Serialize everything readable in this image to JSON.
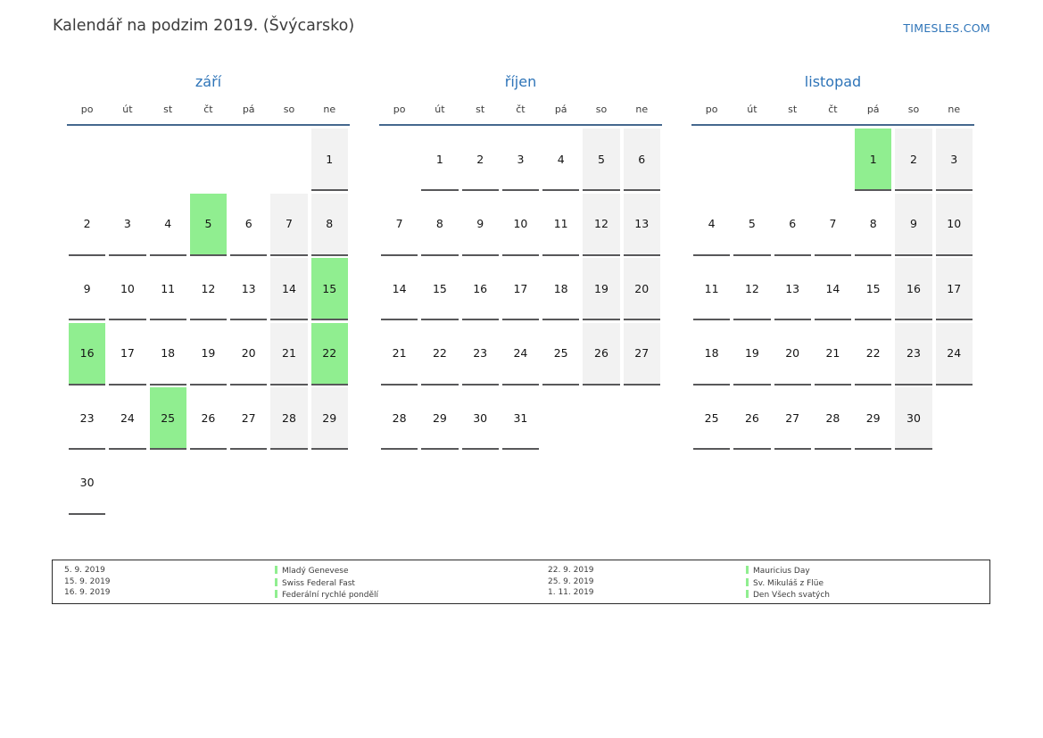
{
  "header": {
    "title": "Kalendář na podzim 2019. (Švýcarsko)",
    "site_link": "TIMESLES.COM"
  },
  "weekday_labels": [
    "po",
    "út",
    "st",
    "čt",
    "pá",
    "so",
    "ne"
  ],
  "colors": {
    "accent_blue": "#2e74b8",
    "header_line_blue": "#45688e",
    "holiday_green": "#90ee90",
    "weekend_gray": "#f2f2f2",
    "cell_underline": "#58585a",
    "text_dark": "#3c3c3c"
  },
  "months": [
    {
      "name": "září",
      "weeks": [
        [
          null,
          null,
          null,
          null,
          null,
          null,
          {
            "d": 1,
            "t": "we"
          }
        ],
        [
          {
            "d": 2,
            "t": "wd"
          },
          {
            "d": 3,
            "t": "wd"
          },
          {
            "d": 4,
            "t": "wd"
          },
          {
            "d": 5,
            "t": "hl"
          },
          {
            "d": 6,
            "t": "wd"
          },
          {
            "d": 7,
            "t": "we"
          },
          {
            "d": 8,
            "t": "we"
          }
        ],
        [
          {
            "d": 9,
            "t": "wd"
          },
          {
            "d": 10,
            "t": "wd"
          },
          {
            "d": 11,
            "t": "wd"
          },
          {
            "d": 12,
            "t": "wd"
          },
          {
            "d": 13,
            "t": "wd"
          },
          {
            "d": 14,
            "t": "we"
          },
          {
            "d": 15,
            "t": "hl"
          }
        ],
        [
          {
            "d": 16,
            "t": "hl"
          },
          {
            "d": 17,
            "t": "wd"
          },
          {
            "d": 18,
            "t": "wd"
          },
          {
            "d": 19,
            "t": "wd"
          },
          {
            "d": 20,
            "t": "wd"
          },
          {
            "d": 21,
            "t": "we"
          },
          {
            "d": 22,
            "t": "hl"
          }
        ],
        [
          {
            "d": 23,
            "t": "wd"
          },
          {
            "d": 24,
            "t": "wd"
          },
          {
            "d": 25,
            "t": "hl"
          },
          {
            "d": 26,
            "t": "wd"
          },
          {
            "d": 27,
            "t": "wd"
          },
          {
            "d": 28,
            "t": "we"
          },
          {
            "d": 29,
            "t": "we"
          }
        ],
        [
          {
            "d": 30,
            "t": "wd"
          },
          null,
          null,
          null,
          null,
          null,
          null
        ]
      ]
    },
    {
      "name": "říjen",
      "weeks": [
        [
          null,
          {
            "d": 1,
            "t": "wd"
          },
          {
            "d": 2,
            "t": "wd"
          },
          {
            "d": 3,
            "t": "wd"
          },
          {
            "d": 4,
            "t": "wd"
          },
          {
            "d": 5,
            "t": "we"
          },
          {
            "d": 6,
            "t": "we"
          }
        ],
        [
          {
            "d": 7,
            "t": "wd"
          },
          {
            "d": 8,
            "t": "wd"
          },
          {
            "d": 9,
            "t": "wd"
          },
          {
            "d": 10,
            "t": "wd"
          },
          {
            "d": 11,
            "t": "wd"
          },
          {
            "d": 12,
            "t": "we"
          },
          {
            "d": 13,
            "t": "we"
          }
        ],
        [
          {
            "d": 14,
            "t": "wd"
          },
          {
            "d": 15,
            "t": "wd"
          },
          {
            "d": 16,
            "t": "wd"
          },
          {
            "d": 17,
            "t": "wd"
          },
          {
            "d": 18,
            "t": "wd"
          },
          {
            "d": 19,
            "t": "we"
          },
          {
            "d": 20,
            "t": "we"
          }
        ],
        [
          {
            "d": 21,
            "t": "wd"
          },
          {
            "d": 22,
            "t": "wd"
          },
          {
            "d": 23,
            "t": "wd"
          },
          {
            "d": 24,
            "t": "wd"
          },
          {
            "d": 25,
            "t": "wd"
          },
          {
            "d": 26,
            "t": "we"
          },
          {
            "d": 27,
            "t": "we"
          }
        ],
        [
          {
            "d": 28,
            "t": "wd"
          },
          {
            "d": 29,
            "t": "wd"
          },
          {
            "d": 30,
            "t": "wd"
          },
          {
            "d": 31,
            "t": "wd"
          },
          null,
          null,
          null
        ]
      ]
    },
    {
      "name": "listopad",
      "weeks": [
        [
          null,
          null,
          null,
          null,
          {
            "d": 1,
            "t": "hl"
          },
          {
            "d": 2,
            "t": "we"
          },
          {
            "d": 3,
            "t": "we"
          }
        ],
        [
          {
            "d": 4,
            "t": "wd"
          },
          {
            "d": 5,
            "t": "wd"
          },
          {
            "d": 6,
            "t": "wd"
          },
          {
            "d": 7,
            "t": "wd"
          },
          {
            "d": 8,
            "t": "wd"
          },
          {
            "d": 9,
            "t": "we"
          },
          {
            "d": 10,
            "t": "we"
          }
        ],
        [
          {
            "d": 11,
            "t": "wd"
          },
          {
            "d": 12,
            "t": "wd"
          },
          {
            "d": 13,
            "t": "wd"
          },
          {
            "d": 14,
            "t": "wd"
          },
          {
            "d": 15,
            "t": "wd"
          },
          {
            "d": 16,
            "t": "we"
          },
          {
            "d": 17,
            "t": "we"
          }
        ],
        [
          {
            "d": 18,
            "t": "wd"
          },
          {
            "d": 19,
            "t": "wd"
          },
          {
            "d": 20,
            "t": "wd"
          },
          {
            "d": 21,
            "t": "wd"
          },
          {
            "d": 22,
            "t": "wd"
          },
          {
            "d": 23,
            "t": "we"
          },
          {
            "d": 24,
            "t": "we"
          }
        ],
        [
          {
            "d": 25,
            "t": "wd"
          },
          {
            "d": 26,
            "t": "wd"
          },
          {
            "d": 27,
            "t": "wd"
          },
          {
            "d": 28,
            "t": "wd"
          },
          {
            "d": 29,
            "t": "wd"
          },
          {
            "d": 30,
            "t": "we"
          },
          null
        ]
      ]
    }
  ],
  "legend": {
    "groups": [
      [
        {
          "date": "5. 9. 2019",
          "name": "Mladý Genevese"
        },
        {
          "date": "15. 9. 2019",
          "name": "Swiss Federal Fast"
        },
        {
          "date": "16. 9. 2019",
          "name": "Federální rychlé pondělí"
        }
      ],
      [
        {
          "date": "22. 9. 2019",
          "name": "Mauricius Day"
        },
        {
          "date": "25. 9. 2019",
          "name": "Sv. Mikuláš z Flüe"
        },
        {
          "date": "1. 11. 2019",
          "name": "Den Všech svatých"
        }
      ]
    ]
  }
}
